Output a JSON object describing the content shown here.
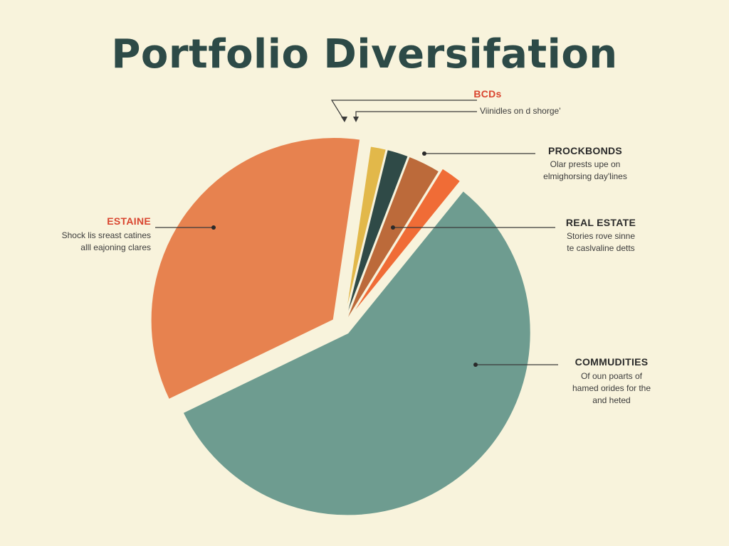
{
  "title": "Portfolio Diversifation",
  "labels": {
    "bcds": {
      "name": "BCDs",
      "desc": "Viinidles on d shorge'"
    },
    "prockbonds": {
      "name": "PROCKBONDS",
      "desc1": "Olar prests upe on",
      "desc2": "elmighorsing day'lines"
    },
    "real_estate": {
      "name": "REAL ESTATE",
      "desc1": "Stories rove sinne",
      "desc2": "te caslvaline detts"
    },
    "commudities": {
      "name": "COMMUDITIES",
      "desc1": "Of oun poarts of",
      "desc2": "hamed orides for the",
      "desc3": "and heted"
    },
    "estaine": {
      "name": "ESTAINE",
      "desc1": "Shock lis sreast catines",
      "desc2": "alll eajoning clares"
    }
  },
  "chart_data": {
    "type": "pie",
    "title": "Portfolio Diversifation",
    "series": [
      {
        "label": "COMMUDITIES",
        "value": 57.0,
        "color": "#6e9c90"
      },
      {
        "label": "ESTAINE",
        "value": 34.5,
        "color": "#e7824f"
      },
      {
        "label": "",
        "value": 1.5,
        "color": "#e2b84a"
      },
      {
        "label": "",
        "value": 2.0,
        "color": "#2f4a47"
      },
      {
        "label": "",
        "value": 3.0,
        "color": "#bc6a3a"
      },
      {
        "label": "REAL ESTATE",
        "value": 2.0,
        "color": "#f06c36"
      }
    ],
    "legend": "none"
  },
  "colors": {
    "background": "#f8f3dc",
    "title": "#2d4a47",
    "accent_red": "#d9452f",
    "dark_label": "#2a2a2a"
  }
}
